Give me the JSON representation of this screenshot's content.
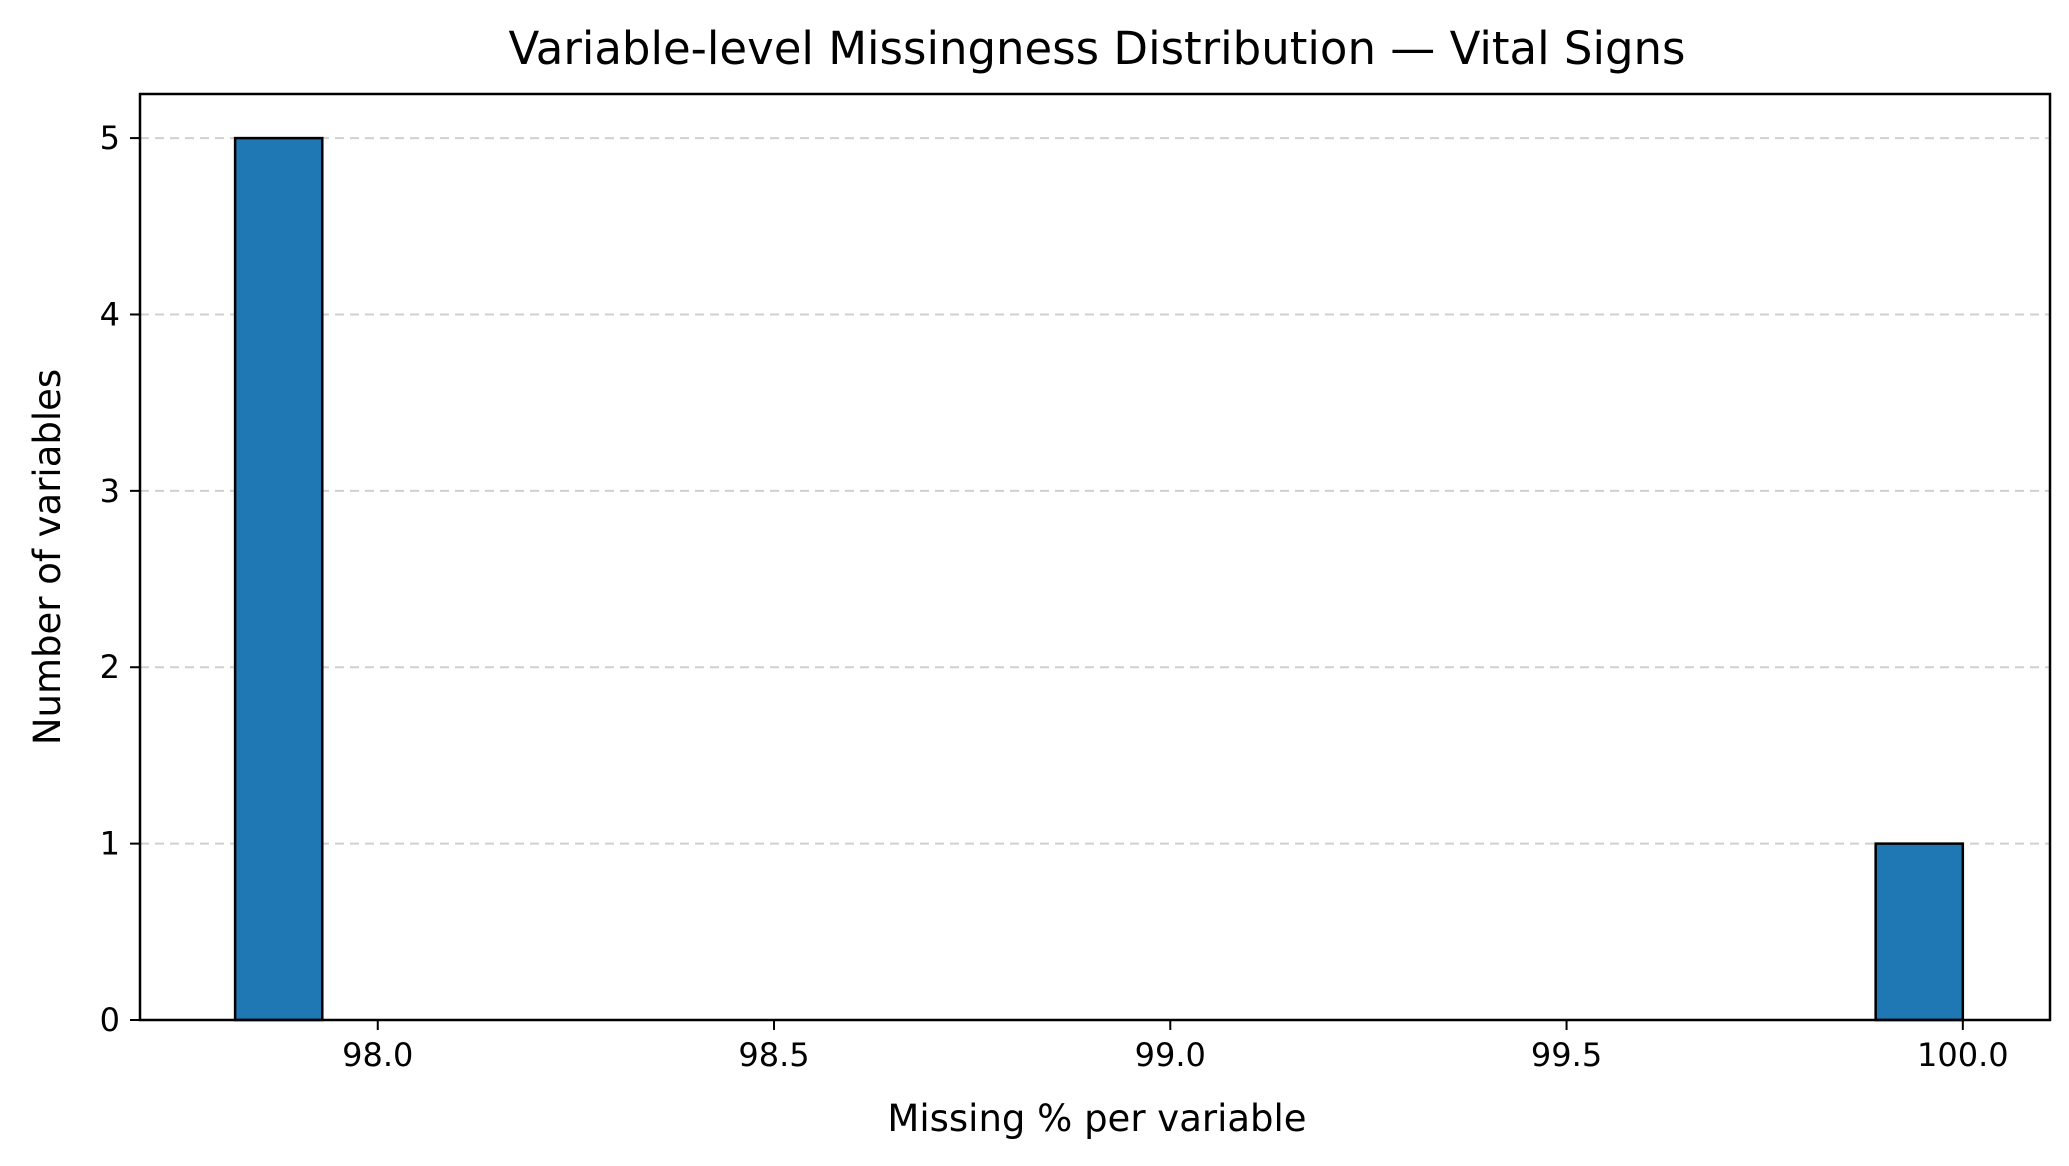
{
  "chart_data": {
    "type": "bar",
    "subtype": "histogram",
    "title": "Variable-level Missingness Distribution — Vital Signs",
    "xlabel": "Missing % per variable",
    "ylabel": "Number of variables",
    "xlim": [
      97.7,
      100.11
    ],
    "ylim": [
      0,
      5.25
    ],
    "x_ticks": [
      "98.0",
      "98.5",
      "99.0",
      "99.5",
      "100.0"
    ],
    "y_ticks": [
      "0",
      "1",
      "2",
      "3",
      "4",
      "5"
    ],
    "grid": "y-axis dashed",
    "legend": "none",
    "bins": [
      {
        "x_start": 97.82,
        "x_end": 97.93,
        "count": 5
      },
      {
        "x_start": 99.89,
        "x_end": 100.0,
        "count": 1
      }
    ],
    "colors": {
      "bar_fill": "#1f77b4",
      "bar_edge": "#000000",
      "grid": "#d0d0d0"
    }
  }
}
